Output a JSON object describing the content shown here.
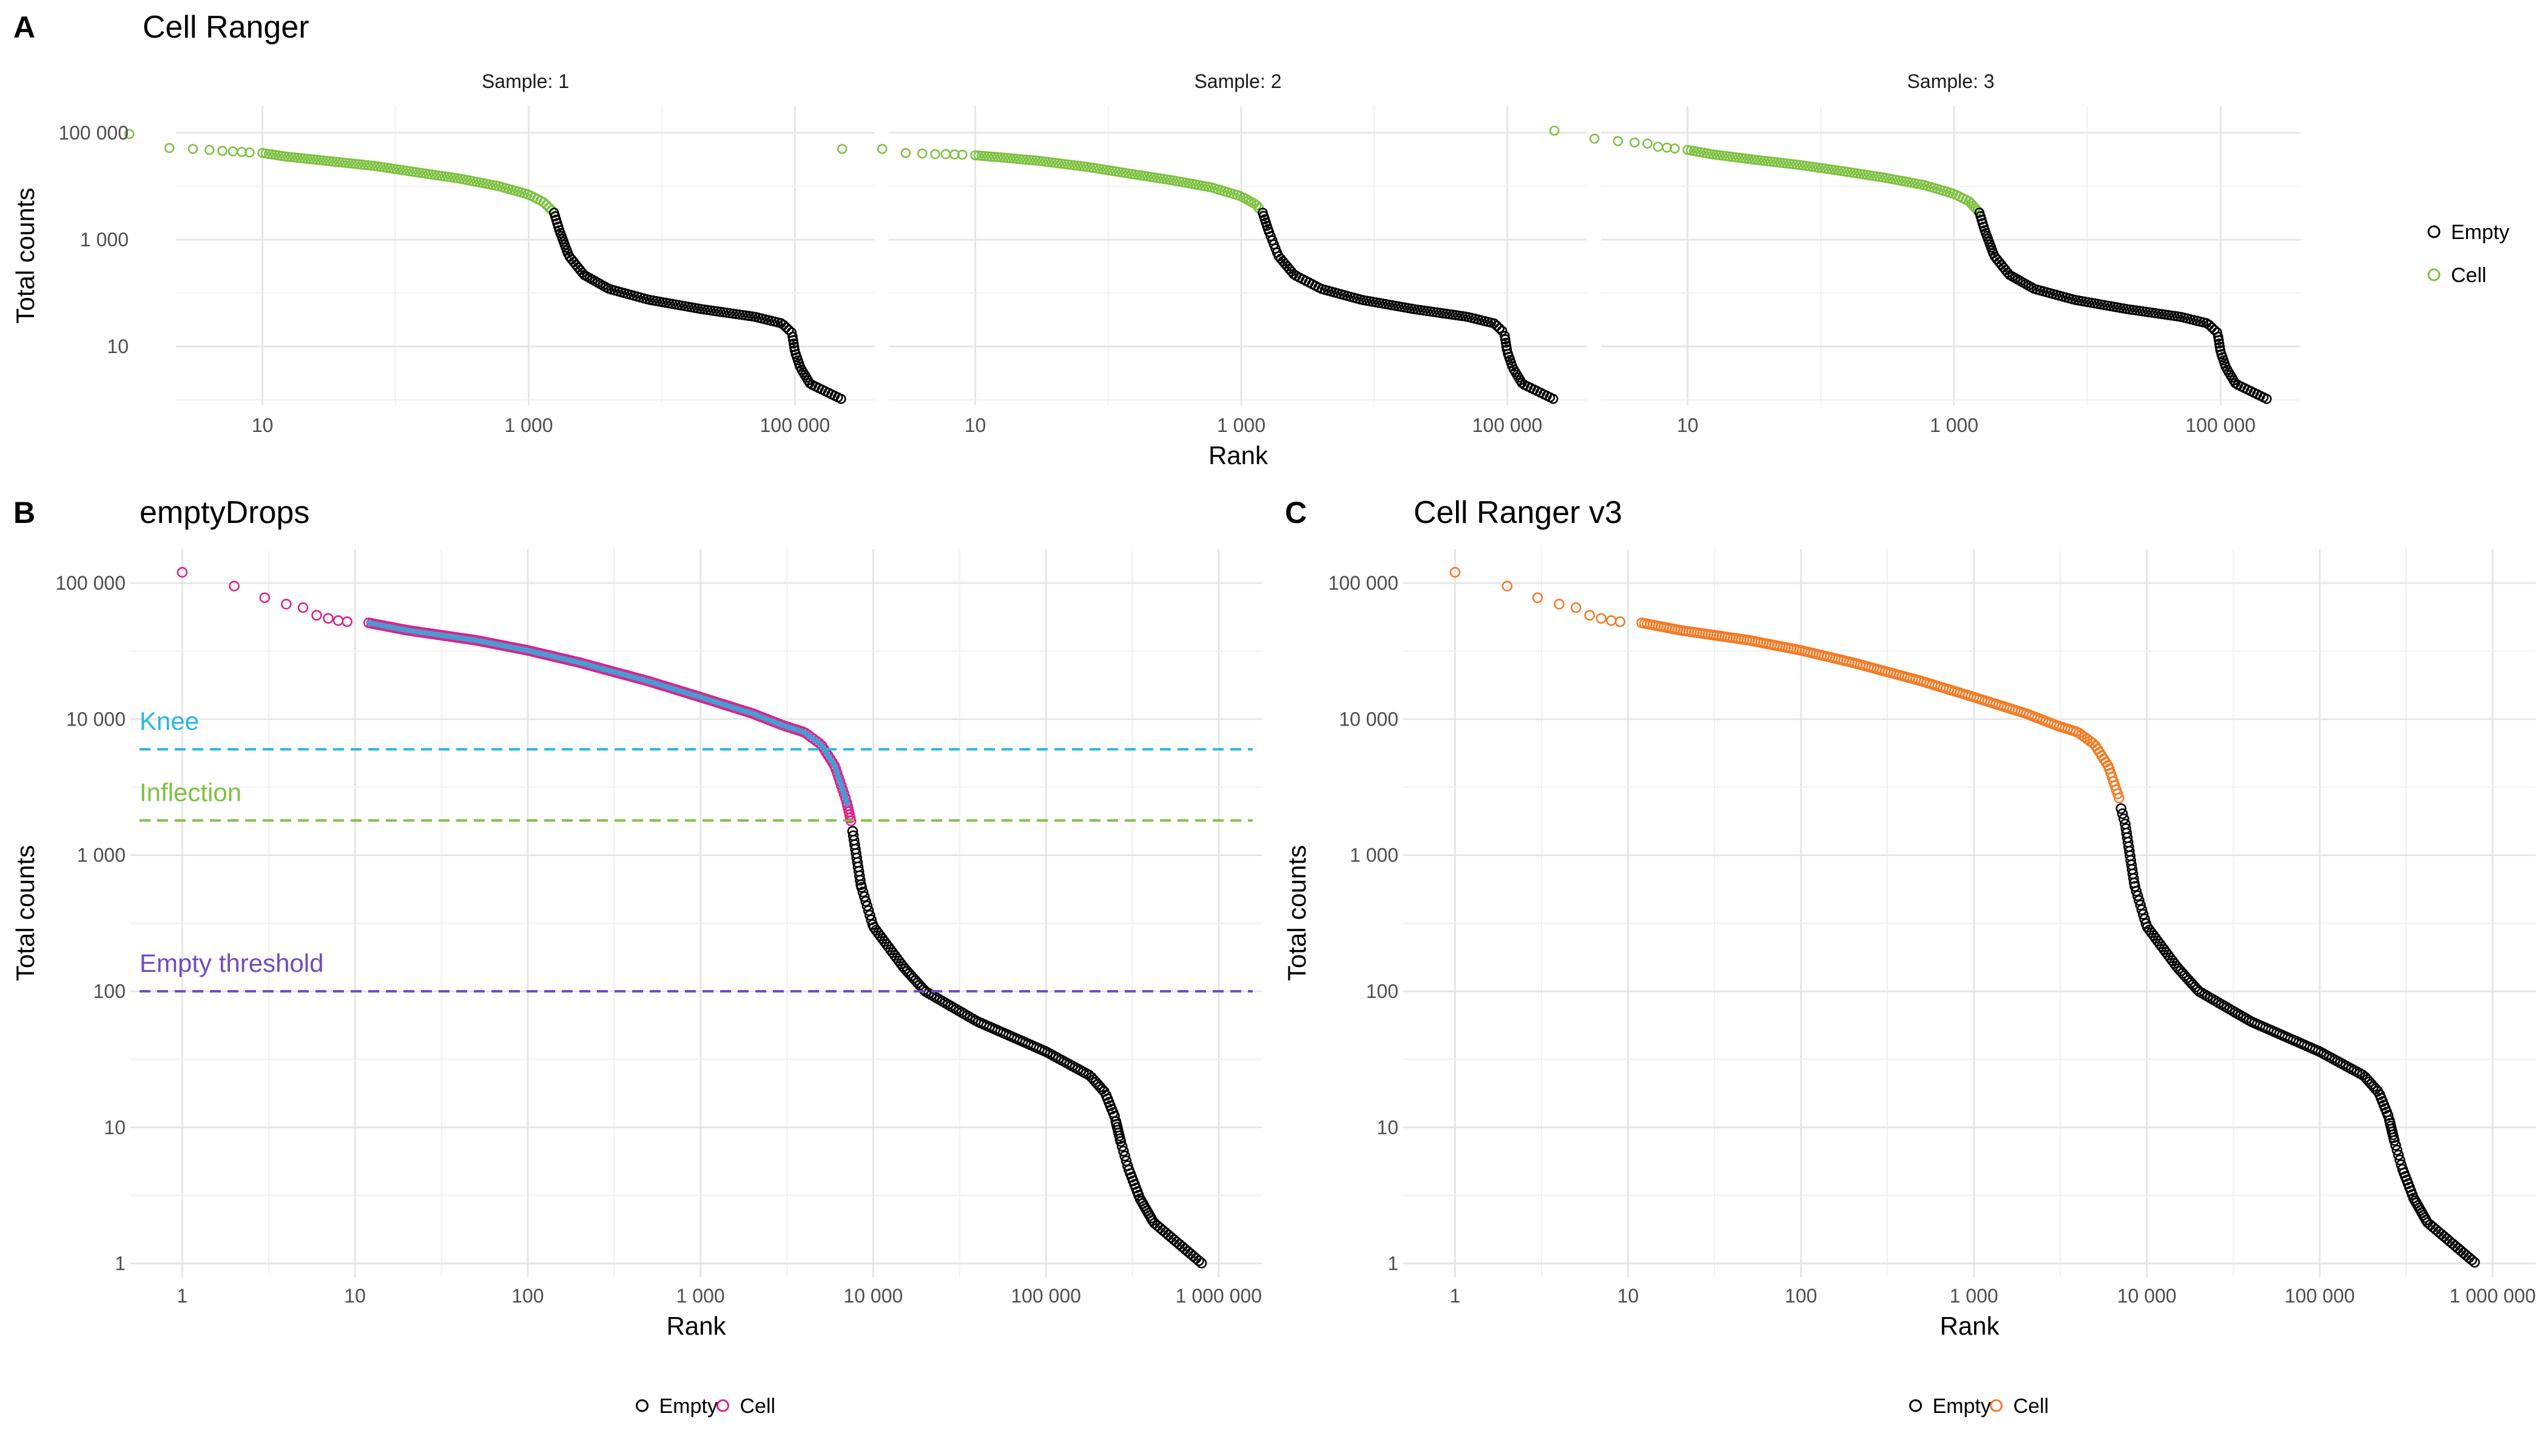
{
  "colors": {
    "empty": "#000000",
    "cell_green": "#7ec143",
    "cell_magenta": "#d9228a",
    "cell_orange": "#f07c28",
    "knee_line": "#29b6e6",
    "inflection_line": "#7ec143",
    "empty_threshold_line": "#6e4dc0",
    "fit_line": "#4a9bd1"
  },
  "chart_data": [
    {
      "panel": "A",
      "title": "Cell Ranger",
      "type": "scatter",
      "xlabel": "Rank",
      "ylabel": "Total counts",
      "x_scale": "log10",
      "y_scale": "log10",
      "x_ticks": [
        {
          "value": 10,
          "label": "10"
        },
        {
          "value": 1000,
          "label": "1 000"
        },
        {
          "value": 100000,
          "label": "100 000"
        }
      ],
      "y_ticks": [
        {
          "value": 10,
          "label": "10"
        },
        {
          "value": 1000,
          "label": "1 000"
        },
        {
          "value": 100000,
          "label": "100 000"
        }
      ],
      "facets": [
        {
          "label": "Sample: 1",
          "cell_cutoff_rank": 1500,
          "series": [
            {
              "name": "Cell",
              "points": [
                [
                  1,
                  95000
                ],
                [
                  2,
                  52000
                ],
                [
                  3,
                  50000
                ],
                [
                  4,
                  48000
                ],
                [
                  5,
                  46000
                ],
                [
                  6,
                  45000
                ],
                [
                  7,
                  44000
                ],
                [
                  8,
                  43000
                ],
                [
                  10,
                  42000
                ],
                [
                  15,
                  36000
                ],
                [
                  30,
                  30000
                ],
                [
                  70,
                  24000
                ],
                [
                  150,
                  18000
                ],
                [
                  300,
                  14000
                ],
                [
                  600,
                  10000
                ],
                [
                  1000,
                  7000
                ],
                [
                  1300,
                  5000
                ],
                [
                  1500,
                  3500
                ]
              ]
            },
            {
              "name": "Empty",
              "points": [
                [
                  1550,
                  3200
                ],
                [
                  1700,
                  1500
                ],
                [
                  2000,
                  500
                ],
                [
                  2600,
                  220
                ],
                [
                  4000,
                  120
                ],
                [
                  8000,
                  75
                ],
                [
                  20000,
                  50
                ],
                [
                  50000,
                  36
                ],
                [
                  80000,
                  27
                ],
                [
                  95000,
                  18
                ],
                [
                  100000,
                  8
                ],
                [
                  110000,
                  4
                ],
                [
                  130000,
                  2
                ],
                [
                  230000,
                  1
                ]
              ]
            }
          ]
        },
        {
          "label": "Sample: 2",
          "cell_cutoff_rank": 1400,
          "series": [
            {
              "name": "Cell",
              "points": [
                [
                  1,
                  50000
                ],
                [
                  2,
                  50000
                ],
                [
                  3,
                  42000
                ],
                [
                  4,
                  41000
                ],
                [
                  5,
                  40000
                ],
                [
                  6,
                  40000
                ],
                [
                  7,
                  39500
                ],
                [
                  8,
                  39000
                ],
                [
                  10,
                  38000
                ],
                [
                  15,
                  35000
                ],
                [
                  30,
                  30000
                ],
                [
                  70,
                  23000
                ],
                [
                  150,
                  17000
                ],
                [
                  300,
                  13000
                ],
                [
                  600,
                  9500
                ],
                [
                  1000,
                  6500
                ],
                [
                  1300,
                  4500
                ],
                [
                  1400,
                  3500
                ]
              ]
            },
            {
              "name": "Empty",
              "points": [
                [
                  1450,
                  3200
                ],
                [
                  1600,
                  1500
                ],
                [
                  1900,
                  500
                ],
                [
                  2500,
                  220
                ],
                [
                  4000,
                  120
                ],
                [
                  8000,
                  75
                ],
                [
                  20000,
                  50
                ],
                [
                  50000,
                  36
                ],
                [
                  80000,
                  27
                ],
                [
                  95000,
                  18
                ],
                [
                  100000,
                  8
                ],
                [
                  110000,
                  4
                ],
                [
                  130000,
                  2
                ],
                [
                  230000,
                  1
                ]
              ]
            }
          ]
        },
        {
          "label": "Sample: 3",
          "cell_cutoff_rank": 1500,
          "series": [
            {
              "name": "Cell",
              "points": [
                [
                  1,
                  110000
                ],
                [
                  2,
                  78000
                ],
                [
                  3,
                  70000
                ],
                [
                  4,
                  66000
                ],
                [
                  5,
                  63000
                ],
                [
                  6,
                  55000
                ],
                [
                  7,
                  53000
                ],
                [
                  8,
                  51000
                ],
                [
                  10,
                  48000
                ],
                [
                  15,
                  40000
                ],
                [
                  30,
                  32000
                ],
                [
                  70,
                  25000
                ],
                [
                  150,
                  19000
                ],
                [
                  300,
                  14500
                ],
                [
                  600,
                  10500
                ],
                [
                  1000,
                  7200
                ],
                [
                  1300,
                  5200
                ],
                [
                  1500,
                  3500
                ]
              ]
            },
            {
              "name": "Empty",
              "points": [
                [
                  1550,
                  3200
                ],
                [
                  1700,
                  1500
                ],
                [
                  2000,
                  500
                ],
                [
                  2600,
                  220
                ],
                [
                  4000,
                  120
                ],
                [
                  8000,
                  75
                ],
                [
                  20000,
                  50
                ],
                [
                  50000,
                  36
                ],
                [
                  80000,
                  27
                ],
                [
                  95000,
                  18
                ],
                [
                  100000,
                  8
                ],
                [
                  110000,
                  4
                ],
                [
                  130000,
                  2
                ],
                [
                  230000,
                  1
                ]
              ]
            }
          ]
        }
      ],
      "legend": {
        "position": "right",
        "entries": [
          {
            "name": "Empty",
            "color": "#000000"
          },
          {
            "name": "Cell",
            "color": "#7ec143"
          }
        ]
      }
    },
    {
      "panel": "B",
      "title": "emptyDrops",
      "type": "scatter",
      "xlabel": "Rank",
      "ylabel": "Total counts",
      "x_scale": "log10",
      "y_scale": "log10",
      "x_ticks": [
        {
          "value": 1,
          "label": "1"
        },
        {
          "value": 10,
          "label": "10"
        },
        {
          "value": 100,
          "label": "100"
        },
        {
          "value": 1000,
          "label": "1 000"
        },
        {
          "value": 10000,
          "label": "10 000"
        },
        {
          "value": 100000,
          "label": "100 000"
        },
        {
          "value": 1000000,
          "label": "1 000 000"
        }
      ],
      "y_ticks": [
        {
          "value": 1,
          "label": "1"
        },
        {
          "value": 10,
          "label": "10"
        },
        {
          "value": 100,
          "label": "100"
        },
        {
          "value": 1000,
          "label": "1 000"
        },
        {
          "value": 10000,
          "label": "10 000"
        },
        {
          "value": 100000,
          "label": "100 000"
        }
      ],
      "hlines": [
        {
          "label": "Knee",
          "y": 6000,
          "color": "#29b6e6"
        },
        {
          "label": "Inflection",
          "y": 1800,
          "color": "#7ec143"
        },
        {
          "label": "Empty threshold",
          "y": 100,
          "color": "#6e4dc0"
        }
      ],
      "cell_cutoff_rank": 7500,
      "series": [
        {
          "name": "Cell",
          "points": [
            [
              1,
              120000
            ],
            [
              2,
              95000
            ],
            [
              3,
              78000
            ],
            [
              4,
              70000
            ],
            [
              5,
              66000
            ],
            [
              6,
              58000
            ],
            [
              7,
              55000
            ],
            [
              8,
              53000
            ],
            [
              9,
              52000
            ],
            [
              12,
              51000
            ],
            [
              20,
              45000
            ],
            [
              50,
              38000
            ],
            [
              100,
              32000
            ],
            [
              200,
              26000
            ],
            [
              500,
              19000
            ],
            [
              1000,
              14500
            ],
            [
              2000,
              11000
            ],
            [
              3000,
              9000
            ],
            [
              4000,
              8000
            ],
            [
              5000,
              6500
            ],
            [
              6000,
              4500
            ],
            [
              7000,
              2500
            ],
            [
              7500,
              1700
            ]
          ]
        },
        {
          "name": "Empty",
          "points": [
            [
              7600,
              1500
            ],
            [
              8500,
              600
            ],
            [
              10000,
              300
            ],
            [
              15000,
              150
            ],
            [
              20000,
              100
            ],
            [
              40000,
              60
            ],
            [
              100000,
              36
            ],
            [
              180000,
              24
            ],
            [
              220000,
              18
            ],
            [
              250000,
              12
            ],
            [
              270000,
              8
            ],
            [
              300000,
              5
            ],
            [
              350000,
              3
            ],
            [
              420000,
              2
            ],
            [
              800000,
              1
            ]
          ]
        }
      ],
      "legend": {
        "position": "bottom",
        "entries": [
          {
            "name": "Empty",
            "color": "#000000"
          },
          {
            "name": "Cell",
            "color": "#d9228a"
          }
        ]
      }
    },
    {
      "panel": "C",
      "title": "Cell Ranger v3",
      "type": "scatter",
      "xlabel": "Rank",
      "ylabel": "Total counts",
      "x_scale": "log10",
      "y_scale": "log10",
      "x_ticks": [
        {
          "value": 1,
          "label": "1"
        },
        {
          "value": 10,
          "label": "10"
        },
        {
          "value": 100,
          "label": "100"
        },
        {
          "value": 1000,
          "label": "1 000"
        },
        {
          "value": 10000,
          "label": "10 000"
        },
        {
          "value": 100000,
          "label": "100 000"
        },
        {
          "value": 1000000,
          "label": "1 000 000"
        }
      ],
      "y_ticks": [
        {
          "value": 1,
          "label": "1"
        },
        {
          "value": 10,
          "label": "10"
        },
        {
          "value": 100,
          "label": "100"
        },
        {
          "value": 1000,
          "label": "1 000"
        },
        {
          "value": 10000,
          "label": "10 000"
        },
        {
          "value": 100000,
          "label": "100 000"
        }
      ],
      "cell_cutoff_rank": 7000,
      "series": [
        {
          "name": "Cell",
          "points": [
            [
              1,
              120000
            ],
            [
              2,
              95000
            ],
            [
              3,
              78000
            ],
            [
              4,
              70000
            ],
            [
              5,
              66000
            ],
            [
              6,
              58000
            ],
            [
              7,
              55000
            ],
            [
              8,
              53000
            ],
            [
              9,
              52000
            ],
            [
              12,
              51000
            ],
            [
              20,
              45000
            ],
            [
              50,
              38000
            ],
            [
              100,
              32000
            ],
            [
              200,
              26000
            ],
            [
              500,
              19000
            ],
            [
              1000,
              14500
            ],
            [
              2000,
              11000
            ],
            [
              3000,
              9000
            ],
            [
              4000,
              8000
            ],
            [
              5000,
              6500
            ],
            [
              6000,
              4500
            ],
            [
              7000,
              2500
            ]
          ]
        },
        {
          "name": "Empty",
          "points": [
            [
              7100,
              2200
            ],
            [
              7500,
              1700
            ],
            [
              8500,
              600
            ],
            [
              10000,
              300
            ],
            [
              15000,
              150
            ],
            [
              20000,
              100
            ],
            [
              40000,
              60
            ],
            [
              100000,
              36
            ],
            [
              180000,
              24
            ],
            [
              220000,
              18
            ],
            [
              250000,
              12
            ],
            [
              270000,
              8
            ],
            [
              300000,
              5
            ],
            [
              350000,
              3
            ],
            [
              420000,
              2
            ],
            [
              800000,
              1
            ]
          ]
        }
      ],
      "legend": {
        "position": "bottom",
        "entries": [
          {
            "name": "Empty",
            "color": "#000000"
          },
          {
            "name": "Cell",
            "color": "#f07c28"
          }
        ]
      }
    }
  ]
}
